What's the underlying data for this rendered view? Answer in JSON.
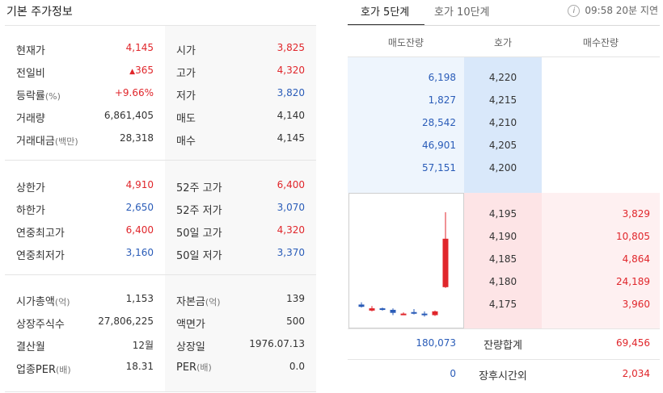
{
  "basic": {
    "title": "기본 주가정보",
    "section1": [
      {
        "label": "현재가",
        "label_small": "",
        "value": "4,145",
        "value_tone": "red",
        "label2": "시가",
        "label2_small": "",
        "value2": "3,825",
        "value2_tone": "red"
      },
      {
        "label": "전일비",
        "label_small": "",
        "value": "365",
        "value_prefix": "▲",
        "value_tone": "red",
        "label2": "고가",
        "label2_small": "",
        "value2": "4,320",
        "value2_tone": "red"
      },
      {
        "label": "등락률",
        "label_small": "(%)",
        "value": "+9.66%",
        "value_tone": "red",
        "label2": "저가",
        "label2_small": "",
        "value2": "3,820",
        "value2_tone": "blue"
      },
      {
        "label": "거래량",
        "label_small": "",
        "value": "6,861,405",
        "value_tone": "dark",
        "label2": "매도",
        "label2_small": "",
        "value2": "4,140",
        "value2_tone": "dark"
      },
      {
        "label": "거래대금",
        "label_small": "(백만)",
        "value": "28,318",
        "value_tone": "dark",
        "label2": "매수",
        "label2_small": "",
        "value2": "4,145",
        "value2_tone": "dark"
      }
    ],
    "section2": [
      {
        "label": "상한가",
        "label_small": "",
        "value": "4,910",
        "value_tone": "red",
        "label2": "52주 고가",
        "label2_small": "",
        "value2": "6,400",
        "value2_tone": "red"
      },
      {
        "label": "하한가",
        "label_small": "",
        "value": "2,650",
        "value_tone": "blue",
        "label2": "52주 저가",
        "label2_small": "",
        "value2": "3,070",
        "value2_tone": "blue"
      },
      {
        "label": "연중최고가",
        "label_small": "",
        "value": "6,400",
        "value_tone": "red",
        "label2": "50일 고가",
        "label2_small": "",
        "value2": "4,320",
        "value2_tone": "red"
      },
      {
        "label": "연중최저가",
        "label_small": "",
        "value": "3,160",
        "value_tone": "blue",
        "label2": "50일 저가",
        "label2_small": "",
        "value2": "3,370",
        "value2_tone": "blue"
      }
    ],
    "section3": [
      {
        "label": "시가총액",
        "label_small": "(억)",
        "value": "1,153",
        "value_tone": "dark",
        "label2": "자본금",
        "label2_small": "(억)",
        "value2": "139",
        "value2_tone": "dark"
      },
      {
        "label": "상장주식수",
        "label_small": "",
        "value": "27,806,225",
        "value_tone": "dark",
        "label2": "액면가",
        "label2_small": "",
        "value2": "500",
        "value2_tone": "dark"
      },
      {
        "label": "결산월",
        "label_small": "",
        "value": "12월",
        "value_tone": "dark",
        "label2": "상장일",
        "label2_small": "",
        "value2": "1976.07.13",
        "value2_tone": "dark"
      },
      {
        "label": "업종PER",
        "label_small": "(배)",
        "value": "18.31",
        "value_tone": "dark",
        "label2": "PER",
        "label2_small": "(배)",
        "value2": "0.0",
        "value2_tone": "dark"
      }
    ]
  },
  "orderbook": {
    "tabs": [
      {
        "label": "호가 5단계",
        "active": true
      },
      {
        "label": "호가 10단계",
        "active": false
      }
    ],
    "info_icon_glyph": "i",
    "delay_text": "09:58 20분 지연",
    "headers": {
      "sell": "매도잔량",
      "price": "호가",
      "buy": "매수잔량"
    },
    "asks": [
      {
        "qty": "6,198",
        "price": "4,220"
      },
      {
        "qty": "1,827",
        "price": "4,215"
      },
      {
        "qty": "28,542",
        "price": "4,210"
      },
      {
        "qty": "46,901",
        "price": "4,205"
      },
      {
        "qty": "57,151",
        "price": "4,200"
      }
    ],
    "bids": [
      {
        "price": "4,195",
        "qty": "3,829"
      },
      {
        "price": "4,190",
        "qty": "10,805"
      },
      {
        "price": "4,185",
        "qty": "4,864"
      },
      {
        "price": "4,180",
        "qty": "24,189"
      },
      {
        "price": "4,175",
        "qty": "3,960"
      }
    ],
    "totals": {
      "sell": "180,073",
      "label": "잔량합계",
      "buy": "69,456"
    },
    "after_hours": {
      "sell": "0",
      "label": "장후시간외",
      "buy": "2,034"
    },
    "colors": {
      "sell": "#2a5cb8",
      "buy": "#e0262b",
      "up_candle": "#e0262b",
      "down_candle": "#2a5cb8"
    }
  },
  "chart_data": {
    "type": "candlestick",
    "series": [
      {
        "open": 3710,
        "high": 3725,
        "low": 3690,
        "close": 3695,
        "dir": "down"
      },
      {
        "open": 3685,
        "high": 3700,
        "low": 3665,
        "close": 3670,
        "dir": "up"
      },
      {
        "open": 3680,
        "high": 3690,
        "low": 3670,
        "close": 3685,
        "dir": "down"
      },
      {
        "open": 3675,
        "high": 3685,
        "low": 3640,
        "close": 3655,
        "dir": "down"
      },
      {
        "open": 3650,
        "high": 3658,
        "low": 3640,
        "close": 3645,
        "dir": "up"
      },
      {
        "open": 3660,
        "high": 3680,
        "low": 3645,
        "close": 3660,
        "dir": "down"
      },
      {
        "open": 3650,
        "high": 3665,
        "low": 3630,
        "close": 3640,
        "dir": "down"
      },
      {
        "open": 3640,
        "high": 3670,
        "low": 3635,
        "close": 3665,
        "dir": "up"
      },
      {
        "open": 3825,
        "high": 4320,
        "low": 3820,
        "close": 4145,
        "dir": "up"
      }
    ],
    "ylim": [
      3600,
      4400
    ]
  }
}
